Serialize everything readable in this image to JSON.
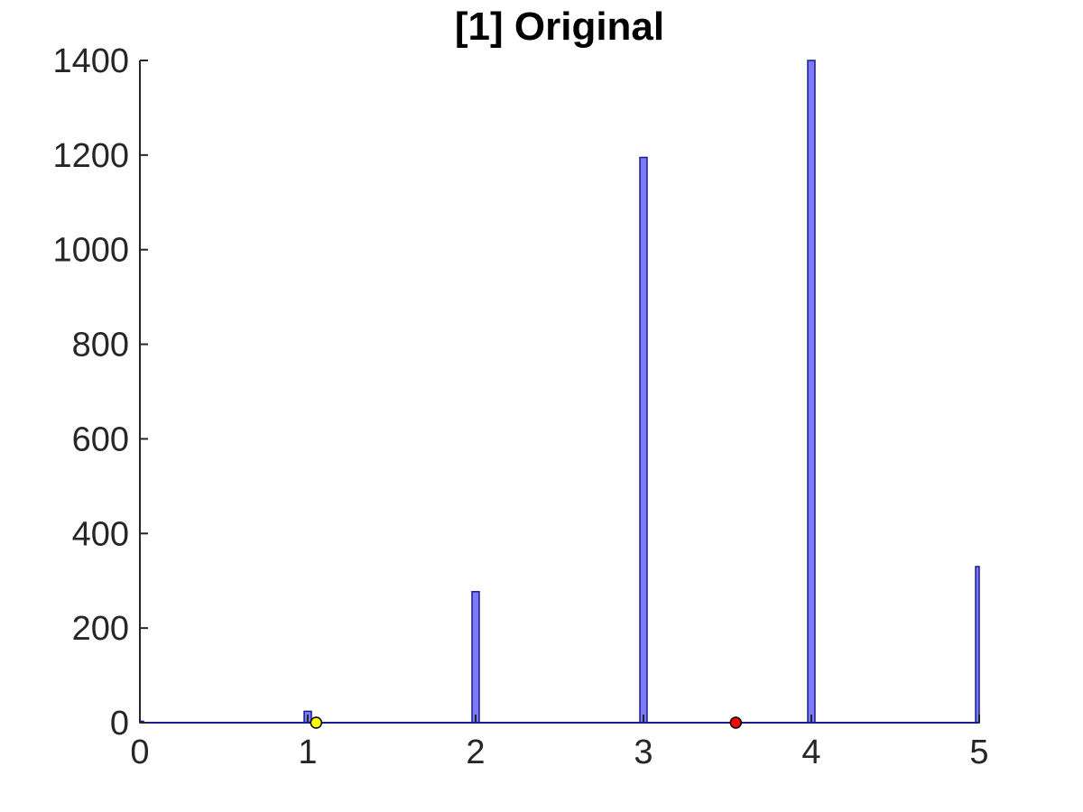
{
  "chart_data": {
    "type": "bar",
    "title": "[1] Original",
    "xlabel": "",
    "ylabel": "",
    "xlim": [
      0,
      5
    ],
    "ylim": [
      0,
      1400
    ],
    "x_ticks": [
      0,
      1,
      2,
      3,
      4,
      5
    ],
    "y_ticks": [
      0,
      200,
      400,
      600,
      800,
      1000,
      1200,
      1400
    ],
    "grid": false,
    "bars": [
      {
        "x": 0.0,
        "value": 3
      },
      {
        "x": 1.0,
        "value": 24
      },
      {
        "x": 2.0,
        "value": 277
      },
      {
        "x": 3.0,
        "value": 1195
      },
      {
        "x": 4.0,
        "value": 1400
      },
      {
        "x": 5.0,
        "value": 330
      }
    ],
    "markers": [
      {
        "x": 1.05,
        "y": 0,
        "color": "#ffff00"
      },
      {
        "x": 3.55,
        "y": 0,
        "color": "#ff0000"
      }
    ],
    "colors": {
      "bar_fill": "#7b7bf7",
      "bar_edge": "#1c1c8c",
      "axis": "#262626",
      "marker_edge": "#000000"
    }
  }
}
